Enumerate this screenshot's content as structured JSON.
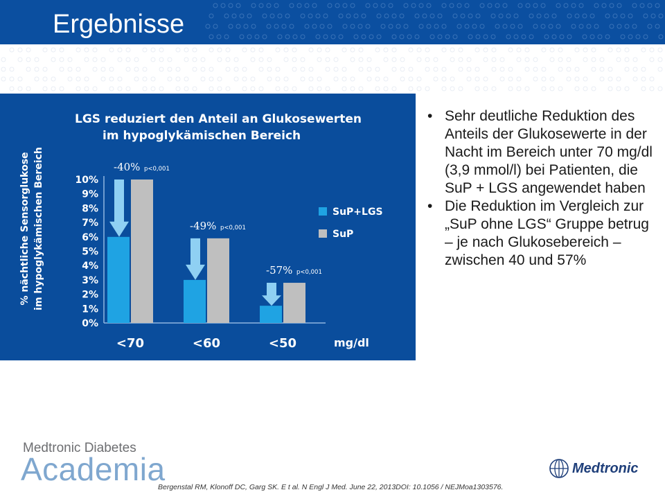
{
  "slide": {
    "title": "Ergebnisse",
    "bullets": [
      "Sehr deutliche Reduktion des Anteils der Glukosewerte in der Nacht im Bereich unter 70 mg/dl (3,9 mmol/l) bei Patienten, die SuP + LGS angewendet haben",
      "Die Reduktion im Vergleich zur „SuP ohne LGS“ Gruppe betrug – je nach Glukosebereich – zwischen 40 und 57%"
    ],
    "brand_line1": "Medtronic Diabetes",
    "brand_line2": "Academia",
    "logo_text": "Medtronic",
    "citation": "Bergenstal RM, Klonoff DC, Garg SK. E t al. N Engl J Med. June 22, 2013DOI: 10.1056 / NEJMoa1303576.",
    "colors": {
      "header": "#0b4fa0",
      "panel": "#0a4d9c",
      "sup_lgs": "#1fa3e3",
      "sup": "#bfbfbf",
      "arrow": "#8fd0f3"
    }
  },
  "chart_data": {
    "type": "bar",
    "title": "LGS reduziert den Anteil an Glukosewerten",
    "subtitle": "im hypoglykämischen Bereich",
    "ylabel_line1": "% nächtliche Sensorglukose",
    "ylabel_line2": "im hypoglykämischen Bereich",
    "xunit": "mg/dl",
    "categories": [
      "<70",
      "<60",
      "<50"
    ],
    "yticks": [
      "0%",
      "1%",
      "2%",
      "3%",
      "4%",
      "5%",
      "6%",
      "7%",
      "8%",
      "9%",
      "10%"
    ],
    "ylim": [
      0,
      10
    ],
    "series": [
      {
        "name": "SuP+LGS",
        "values": [
          6.0,
          3.0,
          1.2
        ]
      },
      {
        "name": "SuP",
        "values": [
          10.0,
          5.9,
          2.8
        ]
      }
    ],
    "annotations": [
      {
        "pct": "-40%",
        "p": "p<0,001"
      },
      {
        "pct": "-49%",
        "p": "p<0,001"
      },
      {
        "pct": "-57%",
        "p": "p<0,001"
      }
    ],
    "legend_position": "right"
  }
}
